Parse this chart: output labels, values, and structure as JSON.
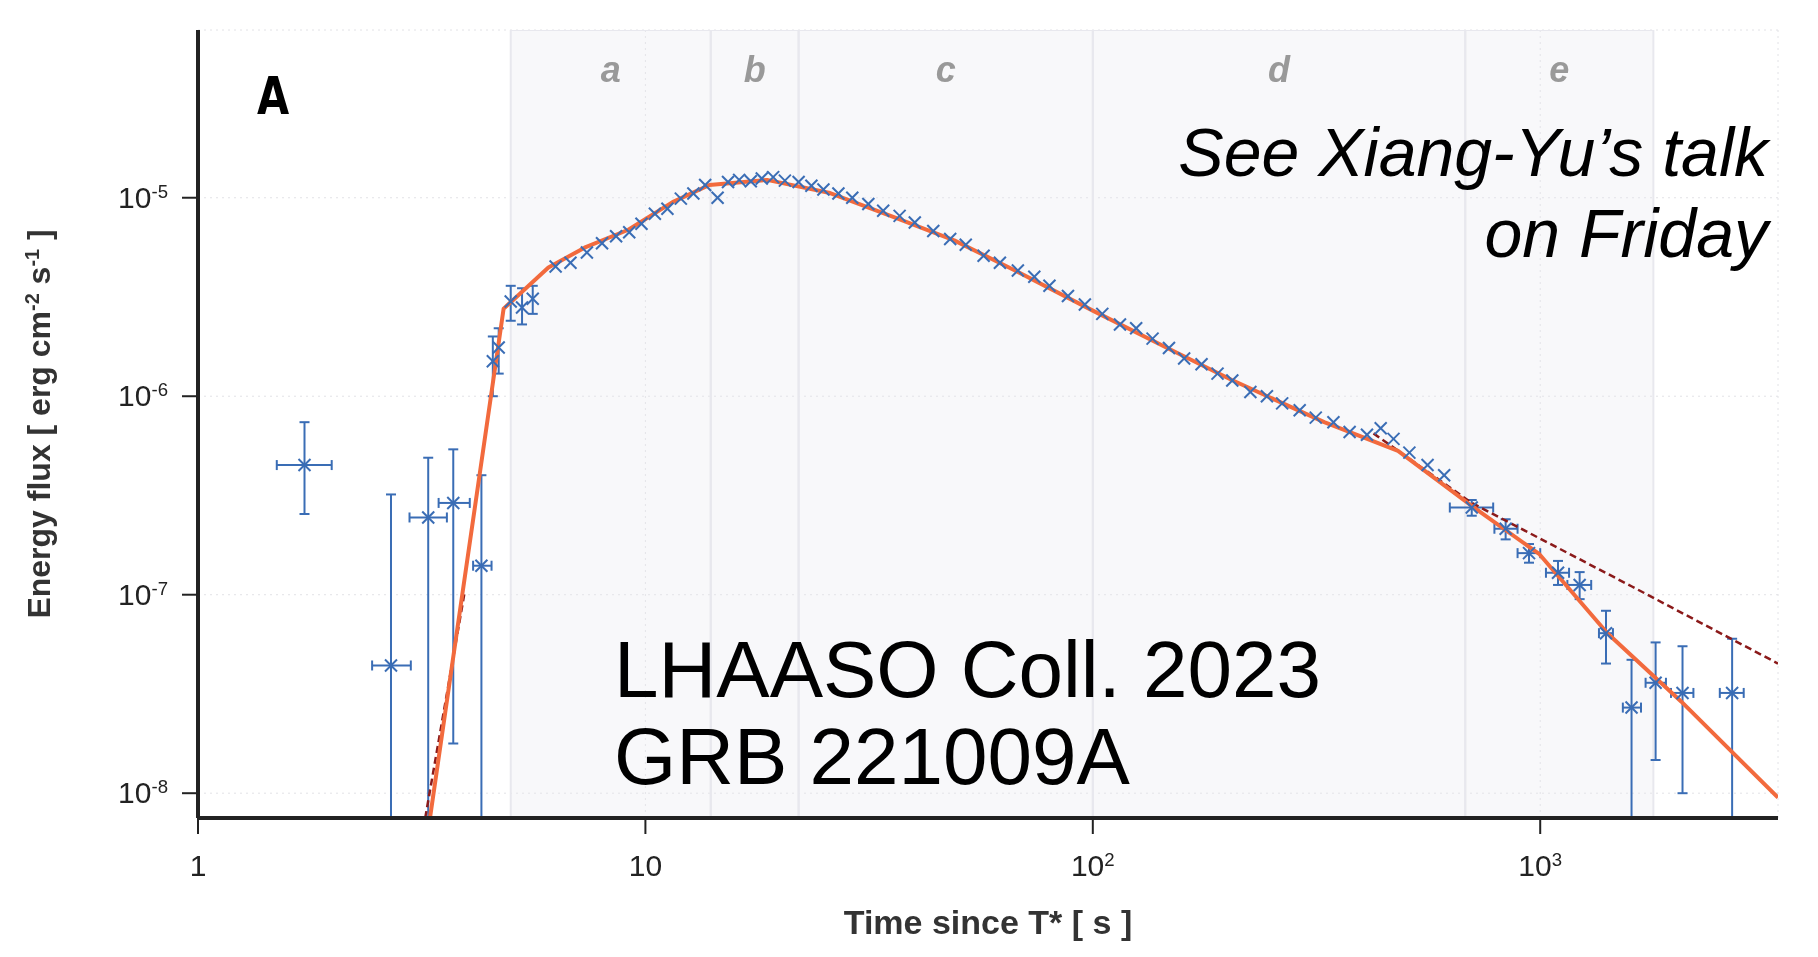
{
  "chart_data": {
    "type": "scatter",
    "xlabel": "Time since T* [ s ]",
    "ylabel": "Energy flux [ erg cm$^{-2}$ s$^{-1}$ ]",
    "log": "xy",
    "grid": true,
    "xlim": [
      1,
      3400
    ],
    "ylim": [
      7.5e-09,
      7e-05
    ],
    "xticks": [
      1,
      10,
      {
        "value": 100,
        "label": "10$^{2}$"
      },
      {
        "value": 1000,
        "label": "10$^{3}$"
      }
    ],
    "yticks": [
      {
        "value": 1e-08,
        "label": "10$^{-8}$"
      },
      {
        "value": 1e-07,
        "label": "10$^{-7}$"
      },
      {
        "value": 1e-06,
        "label": "10$^{-6}$"
      },
      {
        "value": 1e-05,
        "label": "10$^{-5}$"
      }
    ],
    "bands": [
      {
        "axis": "x",
        "from": 5,
        "to": 14,
        "label": "a",
        "color": "#e8e8ee"
      },
      {
        "axis": "x",
        "from": 14,
        "to": 22,
        "label": "b",
        "color": "#e8e8ee"
      },
      {
        "axis": "x",
        "from": 22,
        "to": 100,
        "label": "c",
        "color": "#e8e8ee"
      },
      {
        "axis": "x",
        "from": 100,
        "to": 680,
        "label": "d",
        "color": "#e8e8ee"
      },
      {
        "axis": "x",
        "from": 680,
        "to": 1790,
        "label": "e",
        "color": "#e8e8ee"
      }
    ],
    "annotations": [
      "A",
      "See Xiang-Yu’s talk on Friday",
      "LHAASO Coll. 2023",
      "GRB 221009A"
    ],
    "series": [
      {
        "color": "#3a6db5",
        "marker": "cross",
        "x": [
          1.73,
          2.7,
          3.27,
          3.72,
          4.3,
          4.56,
          4.7,
          5.0,
          5.3,
          5.6,
          6.3,
          6.8,
          7.4,
          8.0,
          8.6,
          9.2,
          9.8,
          10.5,
          11.2,
          12,
          12.8,
          13.6,
          14.5,
          15.3,
          16.2,
          17.2,
          18.2,
          19.3,
          20.5,
          22,
          23.5,
          25,
          27,
          29,
          31.5,
          34,
          37,
          40,
          44,
          48,
          52,
          57,
          62,
          68,
          74,
          80,
          88,
          96,
          105,
          115,
          125,
          136,
          148,
          160,
          175,
          190,
          205,
          225,
          245,
          265,
          290,
          315,
          345,
          375,
          410,
          440,
          470,
          510,
          560,
          610,
          703,
          837,
          944,
          1096,
          1225,
          1403,
          1600,
          1811,
          2080,
          2685
        ],
        "values": [
          4.5e-07,
          4.4e-08,
          2.45e-07,
          2.9e-07,
          1.4e-07,
          1.5e-06,
          1.76e-06,
          3e-06,
          2.8e-06,
          3.1e-06,
          4.5e-06,
          4.7e-06,
          5.3e-06,
          5.9e-06,
          6.4e-06,
          6.7e-06,
          7.4e-06,
          8.3e-06,
          8.8e-06,
          9.9e-06,
          1.05e-05,
          1.16e-05,
          1e-05,
          1.2e-05,
          1.23e-05,
          1.21e-05,
          1.25e-05,
          1.27e-05,
          1.22e-05,
          1.2e-05,
          1.15e-05,
          1.1e-05,
          1.05e-05,
          1e-05,
          9.3e-06,
          8.6e-06,
          8.1e-06,
          7.5e-06,
          6.8e-06,
          6.2e-06,
          5.8e-06,
          5.1e-06,
          4.7e-06,
          4.3e-06,
          4e-06,
          3.6e-06,
          3.2e-06,
          2.9e-06,
          2.6e-06,
          2.3e-06,
          2.2e-06,
          1.95e-06,
          1.75e-06,
          1.55e-06,
          1.45e-06,
          1.3e-06,
          1.2e-06,
          1.05e-06,
          1e-06,
          9.2e-07,
          8.5e-07,
          7.8e-07,
          7.4e-07,
          6.6e-07,
          6.4e-07,
          6.9e-07,
          6.1e-07,
          5.2e-07,
          4.5e-07,
          4e-07,
          2.75e-07,
          2.15e-07,
          1.62e-07,
          1.29e-07,
          1.12e-07,
          6.4e-08,
          2.7e-08,
          3.6e-08,
          3.2e-08,
          3.2e-08
        ],
        "errors": [
          [
            2.55e-07,
            7.4e-07
          ],
          [
            7.5e-09,
            3.2e-07
          ],
          [
            7.5e-09,
            4.9e-07
          ],
          [
            1.78e-08,
            5.4e-07
          ],
          [
            7.5e-09,
            4e-07
          ],
          [
            1e-06,
            2e-06
          ],
          [
            1.3e-06,
            2.2e-06
          ],
          [
            2.4e-06,
            3.6e-06
          ],
          [
            2.3e-06,
            3.5e-06
          ],
          [
            2.6e-06,
            3.6e-06
          ],
          null,
          null,
          null,
          null,
          null,
          null,
          null,
          null,
          null,
          null,
          null,
          null,
          null,
          null,
          null,
          null,
          null,
          null,
          null,
          null,
          null,
          null,
          null,
          null,
          null,
          null,
          null,
          null,
          null,
          null,
          null,
          null,
          null,
          null,
          null,
          null,
          null,
          null,
          null,
          null,
          null,
          null,
          null,
          null,
          null,
          null,
          null,
          null,
          null,
          null,
          null,
          null,
          null,
          null,
          null,
          null,
          null,
          null,
          null,
          null,
          [
            2.5e-07,
            3e-07
          ],
          [
            1.9e-07,
            2.4e-07
          ],
          [
            1.45e-07,
            1.8e-07
          ],
          [
            1.12e-07,
            1.48e-07
          ],
          [
            9.5e-08,
            1.3e-07
          ],
          [
            4.5e-08,
            8.3e-08
          ],
          [
            7.5e-09,
            4.7e-08
          ],
          [
            1.47e-08,
            5.75e-08
          ],
          [
            1e-08,
            5.5e-08
          ],
          [
            7.5e-09,
            6e-08
          ]
        ],
        "xerrors": [
          [
            1.5,
            1.99
          ],
          [
            2.45,
            2.99
          ],
          [
            2.97,
            3.6
          ],
          [
            3.45,
            4.05
          ],
          [
            4.12,
            4.53
          ],
          null,
          null,
          null,
          null,
          null,
          null,
          null,
          null,
          null,
          null,
          null,
          null,
          null,
          null,
          null,
          null,
          null,
          null,
          null,
          null,
          null,
          null,
          null,
          null,
          null,
          null,
          null,
          null,
          null,
          null,
          null,
          null,
          null,
          null,
          null,
          null,
          null,
          null,
          null,
          null,
          null,
          null,
          null,
          null,
          null,
          null,
          null,
          null,
          null,
          null,
          null,
          null,
          null,
          null,
          null,
          null,
          null,
          null,
          null,
          null,
          null,
          null,
          null,
          null,
          null,
          [
            628,
            785
          ],
          [
            790,
            890
          ],
          [
            890,
            1000
          ],
          [
            1030,
            1160
          ],
          [
            1150,
            1300
          ],
          [
            1353,
            1454
          ],
          [
            1530,
            1680
          ],
          [
            1720,
            1910
          ],
          [
            1960,
            2200
          ],
          [
            2520,
            2850
          ]
        ]
      },
      {
        "type": "line",
        "color": "#8b1a1a",
        "line_style": "dashed",
        "marker": "none",
        "x": [
          3.22,
          3.95
        ],
        "values": [
          7.5e-09,
          1.05e-07
        ]
      },
      {
        "type": "line",
        "color": "#8b1a1a",
        "line_style": "dashed",
        "marker": "none",
        "x": [
          424,
          703,
          1603,
          3400
        ],
        "values": [
          6.5e-07,
          2.9e-07,
          1.1e-07,
          4.5e-08
        ]
      },
      {
        "type": "line",
        "color": "#f26a3d",
        "line_style": "solid",
        "marker": "none",
        "x": [
          3.3,
          4.82,
          6.07,
          7.31,
          9.16,
          11.5,
          13.9,
          18.7,
          25.7,
          35.8,
          49,
          67,
          100,
          149,
          204,
          329,
          481,
          703,
          996,
          1413,
          2065,
          3400
        ],
        "values": [
          7.5e-09,
          2.76e-06,
          4.45e-06,
          5.6e-06,
          6.9e-06,
          9.5e-06,
          1.16e-05,
          1.23e-05,
          1.06e-05,
          8e-06,
          6.1e-06,
          4.3e-06,
          2.7e-06,
          1.72e-06,
          1.21e-06,
          7.4e-07,
          5.3e-07,
          2.8e-07,
          1.6e-07,
          6.4e-08,
          2.9e-08,
          9.5e-09
        ]
      }
    ]
  }
}
